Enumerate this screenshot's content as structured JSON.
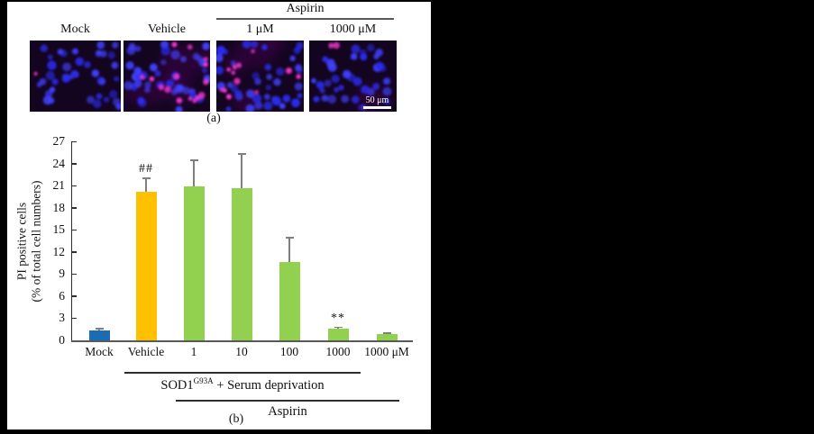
{
  "panel_a": {
    "treatment_label": "Aspirin",
    "panel_label": "(a)",
    "scale_bar_label": "50 μm",
    "bg_color": "#130420",
    "nucleus_color": "#2a2af0",
    "pi_color": "#ff38d6",
    "haze_color": "#8a1090",
    "images": [
      {
        "label": "Mock",
        "blue_cells": 40,
        "pink_cells": 1,
        "haze_spots": 0,
        "seed": 11
      },
      {
        "label": "Vehicle",
        "blue_cells": 42,
        "pink_cells": 15,
        "haze_spots": 6,
        "seed": 7
      },
      {
        "label": "1 μM",
        "blue_cells": 40,
        "pink_cells": 12,
        "haze_spots": 4,
        "seed": 5
      },
      {
        "label": "1000 μM",
        "blue_cells": 38,
        "pink_cells": 2,
        "haze_spots": 1,
        "seed": 13
      }
    ]
  },
  "chart_data": {
    "type": "bar",
    "title": "",
    "ylabel_line1": "PI positive cells",
    "ylabel_line2": "(% of total cell numbers)",
    "categories": [
      "Mock",
      "Vehicle",
      "1",
      "10",
      "100",
      "1000",
      "1000 μM"
    ],
    "values": [
      1.4,
      20.1,
      20.9,
      20.7,
      10.6,
      1.6,
      0.9
    ],
    "errors": [
      0.3,
      2.0,
      3.6,
      4.7,
      3.4,
      0.25,
      0.15
    ],
    "bar_colors": [
      "#1a6cb5",
      "#ffc000",
      "#92d050",
      "#92d050",
      "#92d050",
      "#92d050",
      "#92d050"
    ],
    "ylim": [
      0,
      27
    ],
    "yticks": [
      0,
      3,
      6,
      9,
      12,
      15,
      18,
      21,
      24,
      27
    ],
    "grid": false,
    "legend": "none",
    "axis_color": "#2e2e2e",
    "baseline_color": "#595959",
    "error_color": "#7f7f7f",
    "annotations": [
      {
        "text": "##",
        "category_index": 1
      },
      {
        "text": "**",
        "category_index": 5
      }
    ],
    "group_lines": [
      {
        "label_main": "SOD1",
        "label_sup": "G93A",
        "label_rest": " + Serum deprivation",
        "from_index": 1,
        "to_index": 5
      },
      {
        "label_main": "Aspirin",
        "label_sup": "",
        "label_rest": "",
        "from_index": 2,
        "to_index": 6
      }
    ],
    "panel_label": "(b)"
  }
}
